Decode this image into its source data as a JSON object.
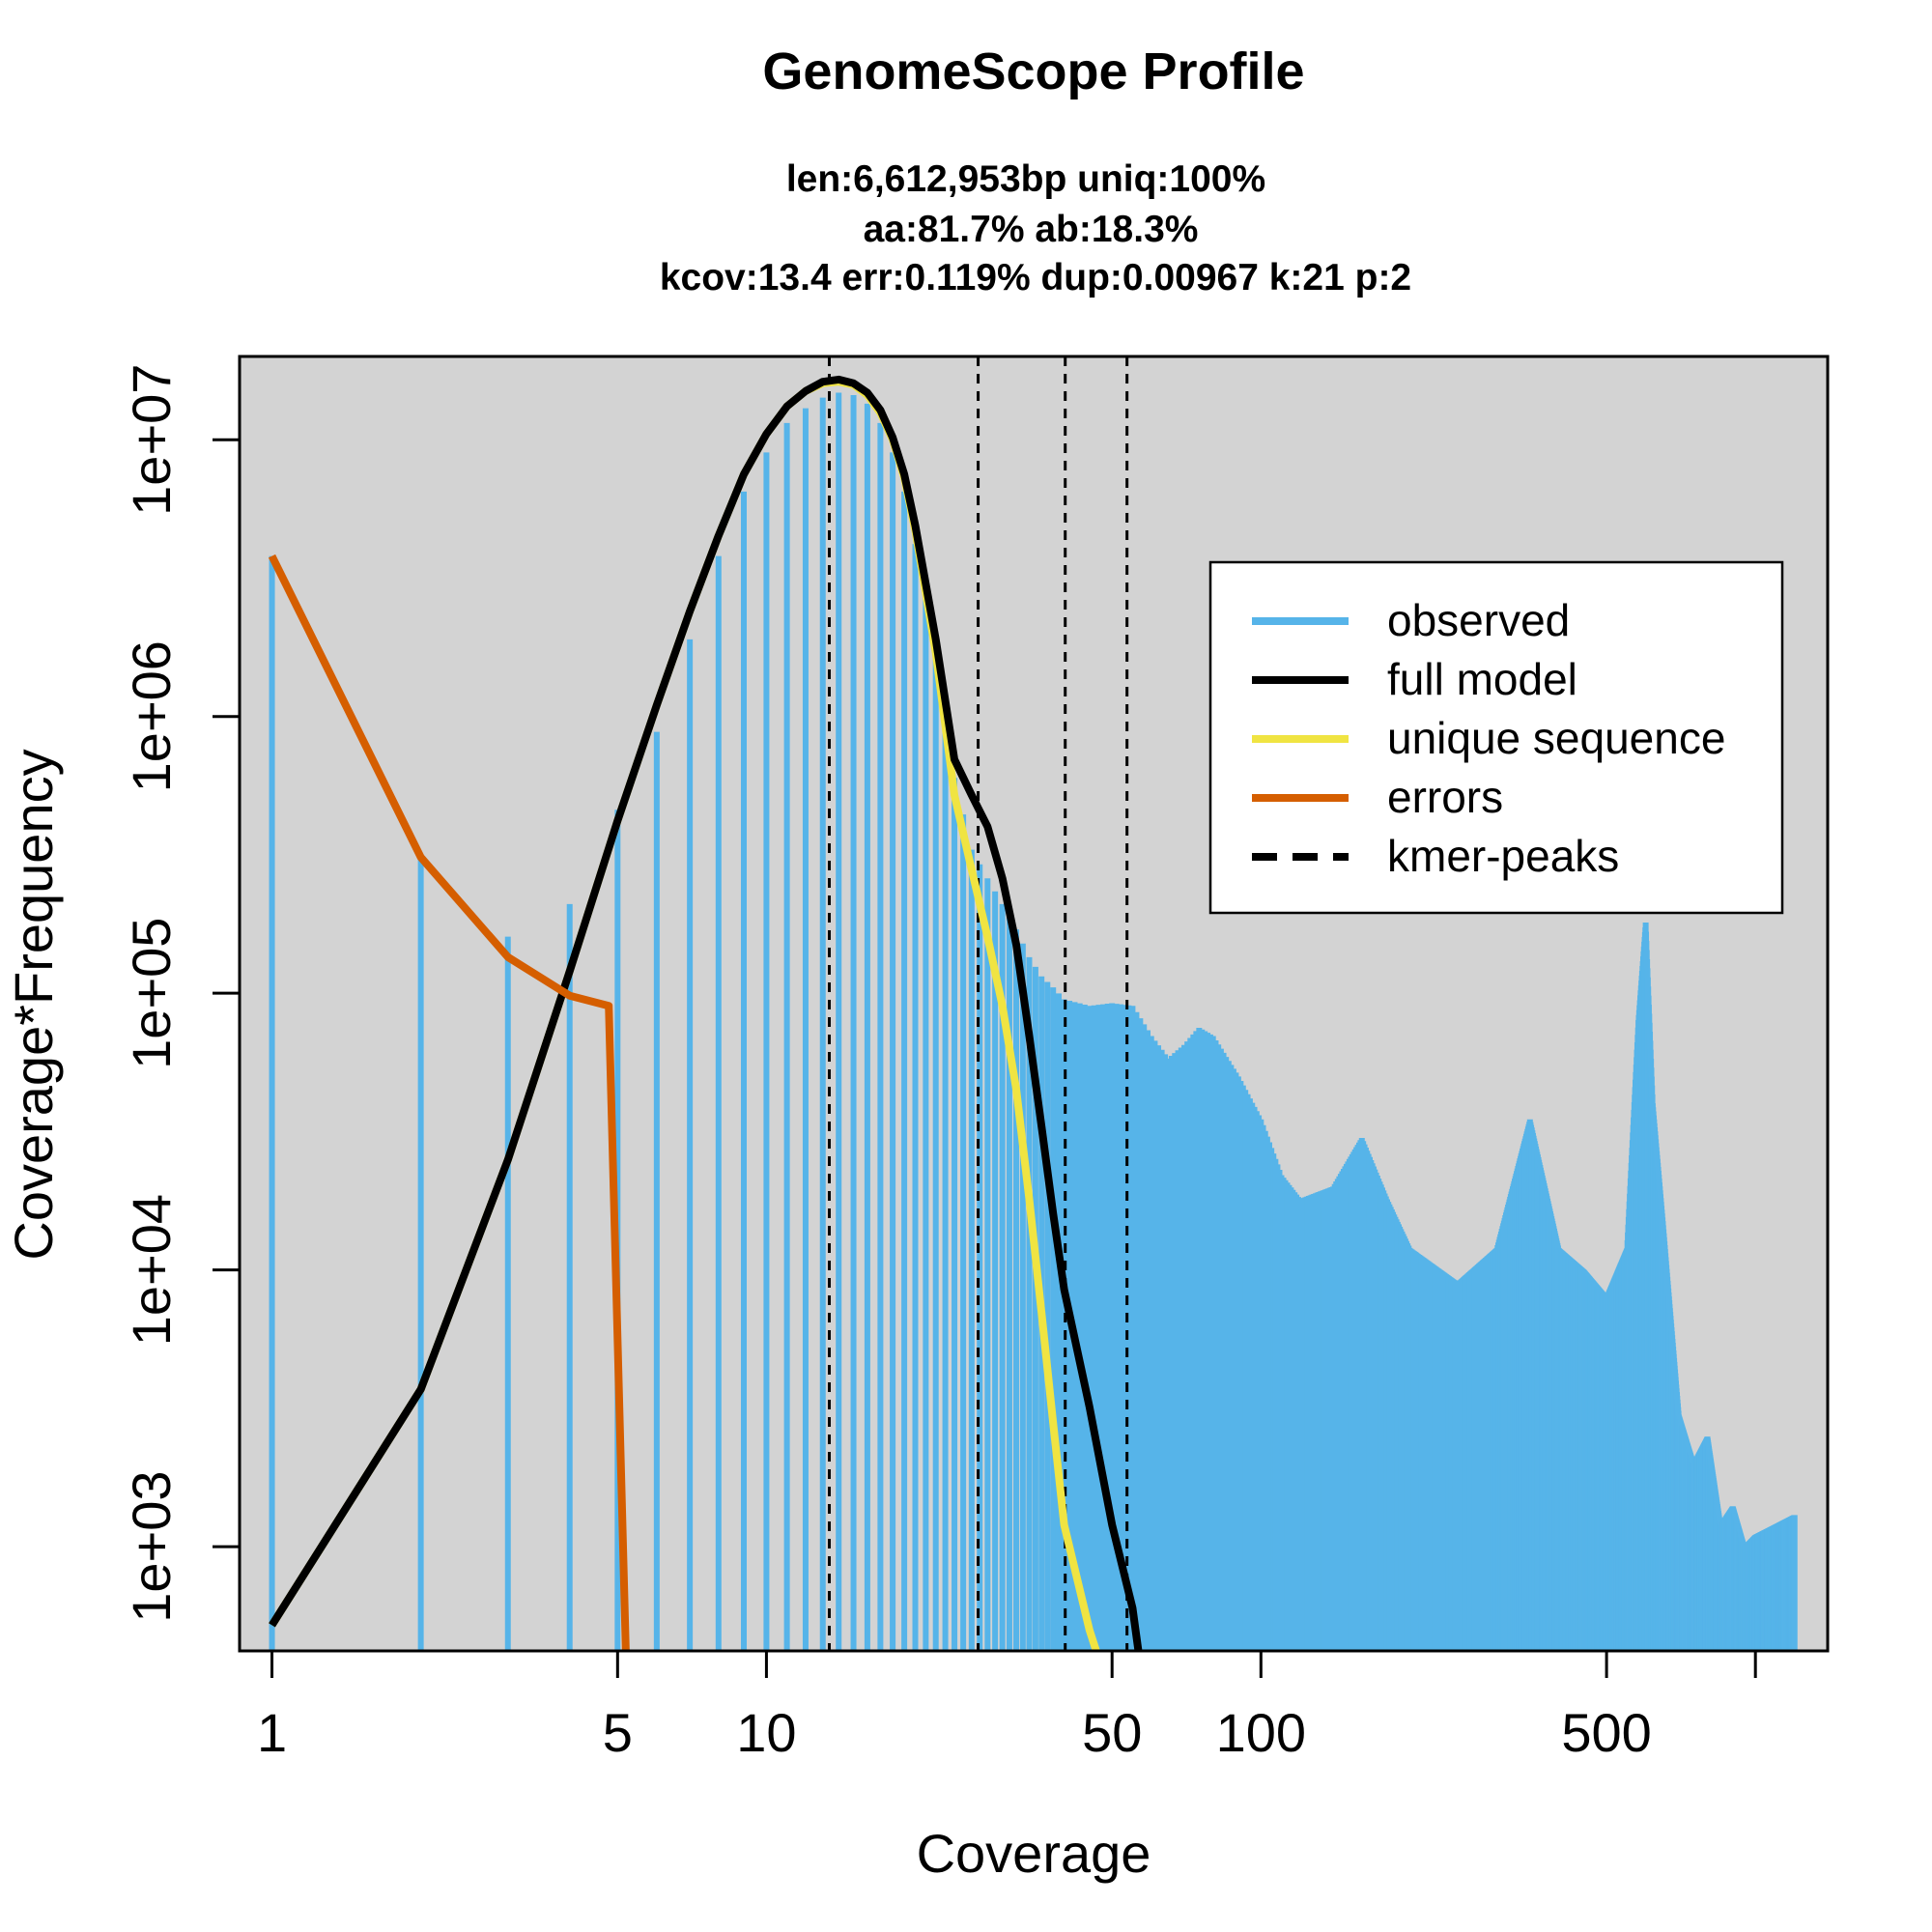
{
  "chart_data": {
    "type": "bar",
    "title": "GenomeScope Profile",
    "subtitle_lines": [
      "len:6,612,953bp uniq:100%",
      "aa:81.7% ab:18.3%",
      "kcov:13.4 err:0.119%  dup:0.00967  k:21 p:2"
    ],
    "xlabel": "Coverage",
    "ylabel": "Coverage*Frequency",
    "xscale": "log",
    "yscale": "log",
    "xlim": [
      0.86,
      1400
    ],
    "ylim": [
      420,
      20000000
    ],
    "x_ticks": [
      1,
      5,
      10,
      50,
      100,
      500,
      1000
    ],
    "x_tick_labels": [
      "1",
      "5",
      "10",
      "50",
      "100",
      "500",
      ""
    ],
    "y_ticks": [
      1000,
      10000,
      100000,
      1000000,
      10000000
    ],
    "y_tick_labels": [
      "1e+03",
      "1e+04",
      "1e+05",
      "1e+06",
      "1e+07"
    ],
    "background": "#d3d3d3",
    "grid": false,
    "legend_position": "top-right",
    "legend": [
      {
        "label": "observed",
        "color": "#56b4e9",
        "style": "solid"
      },
      {
        "label": "full model",
        "color": "#000000",
        "style": "solid"
      },
      {
        "label": "unique sequence",
        "color": "#f0e442",
        "style": "solid"
      },
      {
        "label": "errors",
        "color": "#d55e00",
        "style": "solid"
      },
      {
        "label": "kmer-peaks",
        "color": "#000000",
        "style": "dashed"
      }
    ],
    "kmer_peaks": [
      13.4,
      26.8,
      40.2,
      53.6
    ],
    "observed_anchors": {
      "x": [
        1,
        2,
        3,
        4,
        5,
        6,
        7,
        8,
        9,
        10,
        11,
        12,
        13,
        14,
        15,
        16,
        17,
        18,
        19,
        20,
        22,
        24,
        26,
        28,
        30,
        32,
        34,
        36,
        38,
        40,
        45,
        50,
        55,
        60,
        65,
        70,
        75,
        80,
        90,
        100,
        110,
        120,
        140,
        160,
        180,
        200,
        250,
        300,
        350,
        400,
        450,
        500,
        550,
        580,
        600,
        620,
        650,
        700,
        750,
        800,
        850,
        900,
        950,
        1000,
        1100,
        1200
      ],
      "y": [
        3800000,
        310000,
        160000,
        210000,
        460000,
        880000,
        1900000,
        3800000,
        6500000,
        9000000,
        11500000,
        13000000,
        14200000,
        14800000,
        14500000,
        13500000,
        11500000,
        9000000,
        6500000,
        4200000,
        1800000,
        600000,
        330000,
        260000,
        210000,
        170000,
        135000,
        115000,
        105000,
        95000,
        90000,
        92000,
        90000,
        70000,
        58000,
        65000,
        75000,
        70000,
        50000,
        35000,
        22000,
        18000,
        20000,
        30000,
        18000,
        12000,
        9000,
        12000,
        35000,
        12000,
        10000,
        8000,
        12000,
        80000,
        180000,
        40000,
        15000,
        3000,
        2000,
        2500,
        1200,
        1400,
        1000,
        1100,
        1200,
        1300
      ]
    },
    "full_model": {
      "x": [
        1,
        2,
        3,
        4,
        5,
        6,
        7,
        8,
        9,
        10,
        11,
        12,
        13,
        14,
        15,
        16,
        17,
        18,
        19,
        20,
        22,
        24,
        26,
        28,
        30,
        32,
        34,
        36,
        38,
        40,
        45,
        50,
        55,
        58
      ],
      "y": [
        520,
        3700,
        25000,
        120000,
        420000,
        1100000,
        2400000,
        4500000,
        7500000,
        10500000,
        13200000,
        15000000,
        16200000,
        16500000,
        16000000,
        14800000,
        12800000,
        10200000,
        7500000,
        4900000,
        1900000,
        700000,
        520000,
        400000,
        260000,
        150000,
        70000,
        33000,
        16000,
        8500,
        3200,
        1200,
        600,
        300
      ]
    },
    "unique_sequence": {
      "x": [
        1,
        2,
        3,
        4,
        5,
        6,
        7,
        8,
        9,
        10,
        11,
        12,
        13,
        14,
        15,
        16,
        17,
        18,
        19,
        20,
        22,
        24,
        26,
        28,
        30,
        32,
        34,
        36,
        38,
        40,
        45,
        48
      ],
      "y": [
        520,
        3700,
        25000,
        120000,
        420000,
        1100000,
        2400000,
        4500000,
        7500000,
        10500000,
        13200000,
        15000000,
        16000000,
        16200000,
        15800000,
        14500000,
        12500000,
        10000000,
        7300000,
        4700000,
        1700000,
        520000,
        280000,
        160000,
        90000,
        45000,
        18000,
        7000,
        2800,
        1200,
        500,
        350
      ]
    },
    "errors": {
      "x": [
        1,
        2,
        3,
        4,
        4.8,
        5.2
      ],
      "y": [
        3800000,
        310000,
        135000,
        98000,
        90000,
        400
      ]
    }
  }
}
